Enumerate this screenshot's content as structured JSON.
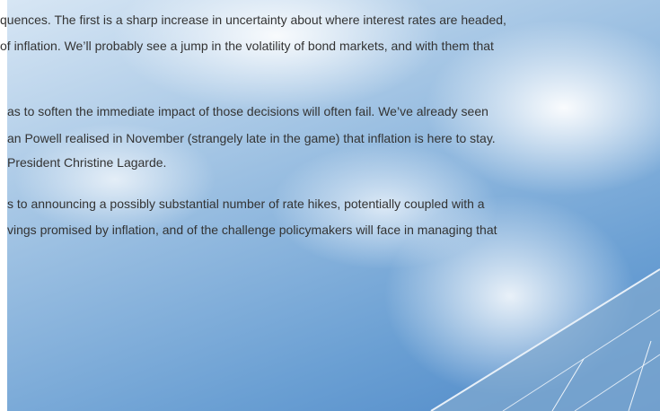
{
  "paragraphs": [
    {
      "lines": [
        "quences. The first is a sharp increase in uncertainty about where interest rates are headed,",
        "of inflation. We’ll probably see a jump in the volatility of bond markets, and with them that"
      ]
    },
    {
      "lines": [
        "as to soften the immediate impact of those decisions will often fail. We’ve already seen",
        "an Powell realised in November (strangely late in the game) that inflation is here to stay.",
        "President Christine Lagarde."
      ]
    },
    {
      "lines": [
        "s to announcing a possibly substantial number of rate hikes, potentially coupled with a",
        "vings promised by inflation, and of the challenge policymakers will face in managing that"
      ]
    }
  ]
}
